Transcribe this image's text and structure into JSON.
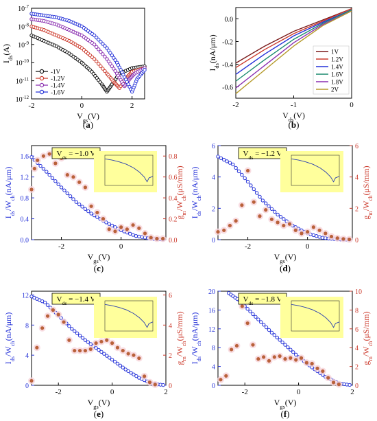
{
  "colors": {
    "blue": "#2431d8",
    "red": "#cc3a2c",
    "black": "#111111",
    "purple": "#8a2fb0",
    "olive": "#8a8a1a",
    "inset_bg": "#ffff9c"
  },
  "chart_data": [
    {
      "id": "a",
      "type": "line",
      "caption": "(a)",
      "xlabel_main": "V",
      "xlabel_sub": "gs",
      "xlabel_unit": "(V)",
      "ylabel_main": "I",
      "ylabel_sub": "ds",
      "ylabel_unit": "(A)",
      "xlim": [
        -2,
        2.5
      ],
      "ylim_log10": [
        -12,
        -7
      ],
      "yscale": "log",
      "xticks": [
        "-2",
        "0",
        "2"
      ],
      "xtick_values": [
        -2,
        0,
        2
      ],
      "ytick_exponents": [
        -7,
        -8,
        -9,
        -10,
        -11,
        -12
      ],
      "ytick_base": "10",
      "legend_position": "bottom-left",
      "series": [
        {
          "name": "-1V",
          "color": "#111111",
          "x": [
            -2,
            -1.5,
            -1,
            -0.5,
            0,
            0.4,
            0.8,
            1.0,
            1.2,
            1.5,
            2.0,
            2.5
          ],
          "y_log10": [
            -8.5,
            -8.8,
            -9.1,
            -9.5,
            -10.0,
            -10.5,
            -11.2,
            -11.6,
            -11.2,
            -10.6,
            -10.3,
            -10.2
          ]
        },
        {
          "name": "-1.2V",
          "color": "#cc3a2c",
          "x": [
            -2,
            -1.5,
            -1,
            -0.5,
            0,
            0.5,
            1.0,
            1.3,
            1.5,
            1.8,
            2.0,
            2.5
          ],
          "y_log10": [
            -8.0,
            -8.2,
            -8.5,
            -8.8,
            -9.2,
            -9.8,
            -10.6,
            -11.1,
            -11.4,
            -10.8,
            -10.5,
            -10.3
          ]
        },
        {
          "name": "-1.4V",
          "color": "#8a2fb0",
          "x": [
            -2,
            -1.5,
            -1,
            -0.5,
            0,
            0.5,
            1.0,
            1.4,
            1.7,
            1.9,
            2.1,
            2.5
          ],
          "y_log10": [
            -7.6,
            -7.7,
            -7.9,
            -8.2,
            -8.5,
            -9.0,
            -9.8,
            -10.6,
            -11.3,
            -10.9,
            -10.6,
            -10.3
          ]
        },
        {
          "name": "-1.6V",
          "color": "#2431d8",
          "x": [
            -2,
            -1.5,
            -1,
            -0.5,
            0,
            0.5,
            1.0,
            1.4,
            1.7,
            2.0,
            2.2,
            2.5
          ],
          "y_log10": [
            -7.3,
            -7.4,
            -7.5,
            -7.7,
            -8.0,
            -8.5,
            -9.2,
            -10.0,
            -10.8,
            -11.6,
            -10.9,
            -10.4
          ]
        }
      ]
    },
    {
      "id": "b",
      "type": "line",
      "caption": "(b)",
      "xlabel_main": "V",
      "xlabel_sub": "ds",
      "xlabel_unit": "(V)",
      "ylabel_main": "I",
      "ylabel_sub": "ds",
      "ylabel_unit": "(nA/μm)",
      "xlim": [
        -2,
        0
      ],
      "ylim": [
        -0.7,
        0.1
      ],
      "xticks": [
        "-2",
        "-1",
        "0"
      ],
      "xtick_values": [
        -2,
        -1,
        0
      ],
      "yticks": [
        "0.0",
        "-0.2",
        "-0.4",
        "-0.6"
      ],
      "ytick_values": [
        0,
        -0.2,
        -0.4,
        -0.6
      ],
      "legend_position": "bottom-right",
      "series": [
        {
          "name": "1V",
          "color": "#7a1a1a",
          "x": [
            -2,
            -1.5,
            -1,
            -0.5,
            0
          ],
          "y": [
            -0.39,
            -0.24,
            -0.11,
            -0.01,
            0.09
          ]
        },
        {
          "name": "1.2V",
          "color": "#cc3a2c",
          "x": [
            -2,
            -1.5,
            -1,
            -0.5,
            0
          ],
          "y": [
            -0.43,
            -0.27,
            -0.13,
            -0.02,
            0.09
          ]
        },
        {
          "name": "1.4V",
          "color": "#2431d8",
          "x": [
            -2,
            -1.5,
            -1,
            -0.5,
            0
          ],
          "y": [
            -0.49,
            -0.31,
            -0.15,
            -0.03,
            0.08
          ]
        },
        {
          "name": "1.6V",
          "color": "#1a8a6e",
          "x": [
            -2,
            -1.5,
            -1,
            -0.5,
            0
          ],
          "y": [
            -0.55,
            -0.36,
            -0.18,
            -0.04,
            0.08
          ]
        },
        {
          "name": "1.8V",
          "color": "#8a2fb0",
          "x": [
            -2,
            -1.5,
            -1,
            -0.5,
            0
          ],
          "y": [
            -0.61,
            -0.41,
            -0.21,
            -0.05,
            0.07
          ]
        },
        {
          "name": "2V",
          "color": "#b59a2a",
          "x": [
            -2,
            -1.5,
            -1,
            -0.5,
            0
          ],
          "y": [
            -0.66,
            -0.45,
            -0.24,
            -0.06,
            0.07
          ]
        }
      ]
    },
    {
      "id": "c",
      "type": "scatter",
      "caption": "(c)",
      "annotation": "V_ds = −1.0 V",
      "ann_main": "V",
      "ann_sub": "ds",
      "ann_rest": "= −1.0 V",
      "xlabel_main": "V",
      "xlabel_sub": "gs",
      "xlabel_unit": "(V)",
      "ylabel_left_parts": [
        "I",
        "ds",
        "/W",
        "ch",
        "(nA/μm)"
      ],
      "ylabel_right_parts": [
        "g",
        "m",
        "/W",
        "ch",
        "(μS/mm)"
      ],
      "xlim": [
        -3,
        1.5
      ],
      "ylim_left": [
        0,
        1.8
      ],
      "ylim_right": [
        0,
        0.9
      ],
      "xticks": [
        "-2",
        "0"
      ],
      "xtick_values": [
        -2,
        0
      ],
      "yticks_left": [
        "0.0",
        "0.4",
        "0.8",
        "1.2",
        "1.6"
      ],
      "ytick_left_values": [
        0,
        0.4,
        0.8,
        1.2,
        1.6
      ],
      "yticks_right": [
        "0.0",
        "0.2",
        "0.4",
        "0.6",
        "0.8"
      ],
      "ytick_right_values": [
        0,
        0.2,
        0.4,
        0.6,
        0.8
      ],
      "ids": {
        "x": [
          -3,
          -2.5,
          -2,
          -1.5,
          -1,
          -0.5,
          0,
          0.5,
          1.0,
          1.5
        ],
        "y": [
          1.58,
          1.3,
          1.0,
          0.72,
          0.5,
          0.33,
          0.18,
          0.07,
          0.02,
          0.0
        ]
      },
      "gm": {
        "x": [
          -3.0,
          -2.9,
          -2.8,
          -2.6,
          -2.4,
          -2.2,
          -2.0,
          -1.8,
          -1.6,
          -1.4,
          -1.2,
          -1.0,
          -0.8,
          -0.6,
          -0.4,
          -0.2,
          0.0,
          0.2,
          0.4,
          0.6,
          0.8,
          1.0,
          1.2,
          1.4
        ],
        "y": [
          0.48,
          0.68,
          0.76,
          0.8,
          0.82,
          0.73,
          0.78,
          0.62,
          0.6,
          0.55,
          0.5,
          0.32,
          0.26,
          0.2,
          0.1,
          0.08,
          0.12,
          0.1,
          0.14,
          0.11,
          0.06,
          0.02,
          0.01,
          0.01
        ]
      }
    },
    {
      "id": "d",
      "type": "scatter",
      "caption": "(d)",
      "annotation": "V_ds = −1.2 V",
      "ann_main": "V",
      "ann_sub": "ds",
      "ann_rest": "= −1.2 V",
      "xlabel_main": "V",
      "xlabel_sub": "gs",
      "xlabel_unit": "(V)",
      "ylabel_left_parts": [
        "I",
        "ds",
        "/W",
        "ch",
        "(nA/μm)"
      ],
      "ylabel_right_parts": [
        "g",
        "m",
        "/W",
        "ch",
        "(μS/mm)"
      ],
      "xlim": [
        -3,
        1.5
      ],
      "ylim_left": [
        0,
        6
      ],
      "ylim_right": [
        0,
        6
      ],
      "xticks": [
        "-2",
        "0"
      ],
      "xtick_values": [
        -2,
        0
      ],
      "yticks_left": [
        "0",
        "2",
        "4",
        "6"
      ],
      "ytick_left_values": [
        0,
        2,
        4,
        6
      ],
      "yticks_right": [
        "0",
        "2",
        "4",
        "6"
      ],
      "ytick_right_values": [
        0,
        2,
        4,
        6
      ],
      "ids": {
        "x": [
          -3,
          -2.5,
          -2,
          -1.5,
          -1,
          -0.5,
          0,
          0.5,
          1.0,
          1.5
        ],
        "y": [
          5.3,
          4.8,
          3.7,
          2.5,
          1.6,
          0.9,
          0.4,
          0.12,
          0.02,
          0.0
        ]
      },
      "gm": {
        "x": [
          -3.0,
          -2.8,
          -2.6,
          -2.4,
          -2.2,
          -2.0,
          -1.8,
          -1.6,
          -1.4,
          -1.2,
          -1.0,
          -0.8,
          -0.6,
          -0.4,
          -0.2,
          0.0,
          0.2,
          0.4,
          0.6,
          0.8,
          1.0,
          1.2,
          1.4
        ],
        "y": [
          0.5,
          0.6,
          0.9,
          1.2,
          2.2,
          4.4,
          2.4,
          1.5,
          1.9,
          1.3,
          1.1,
          0.9,
          1.0,
          0.6,
          0.4,
          0.5,
          0.8,
          0.6,
          0.4,
          0.2,
          0.1,
          0.05,
          0.02
        ]
      }
    },
    {
      "id": "e",
      "type": "scatter",
      "caption": "(e)",
      "annotation": "V_ds = −1.4 V",
      "ann_main": "V",
      "ann_sub": "ds",
      "ann_rest": "= −1.4 V",
      "xlabel_main": "V",
      "xlabel_sub": "gs",
      "xlabel_unit": "(V)",
      "ylabel_left_parts": [
        "I",
        "ds",
        "/W",
        "ch",
        "(nA/μm)"
      ],
      "ylabel_right_parts": [
        "g",
        "m",
        "/W",
        "ch",
        "(μS/mm)"
      ],
      "xlim": [
        -3,
        2
      ],
      "ylim_left": [
        0,
        12.5
      ],
      "ylim_right": [
        0,
        6.25
      ],
      "xticks": [
        "-2",
        "0",
        "2"
      ],
      "xtick_values": [
        -2,
        0,
        2
      ],
      "yticks_left": [
        "0",
        "4",
        "8",
        "12"
      ],
      "ytick_left_values": [
        0,
        4,
        8,
        12
      ],
      "yticks_right": [
        "0",
        "2",
        "4",
        "6"
      ],
      "ytick_right_values": [
        0,
        2,
        4,
        6
      ],
      "ids": {
        "x": [
          -3,
          -2.5,
          -2,
          -1.5,
          -1,
          -0.5,
          0,
          0.5,
          1.0,
          1.5,
          2.0
        ],
        "y": [
          11.8,
          11.0,
          9.3,
          7.5,
          6.0,
          4.7,
          3.4,
          2.1,
          1.0,
          0.2,
          0.0
        ]
      },
      "gm": {
        "x": [
          -3.0,
          -2.8,
          -2.6,
          -2.4,
          -2.2,
          -2.0,
          -1.8,
          -1.6,
          -1.4,
          -1.2,
          -1.0,
          -0.8,
          -0.6,
          -0.4,
          -0.2,
          0.0,
          0.2,
          0.4,
          0.6,
          0.8,
          1.0,
          1.2,
          1.4,
          1.6
        ],
        "y": [
          0.3,
          2.5,
          3.8,
          4.6,
          5.0,
          4.7,
          4.2,
          3.0,
          2.3,
          2.3,
          2.3,
          2.4,
          2.8,
          2.9,
          3.0,
          2.8,
          2.5,
          2.3,
          2.1,
          2.0,
          1.8,
          0.6,
          0.2,
          0.05
        ]
      }
    },
    {
      "id": "f",
      "type": "scatter",
      "caption": "(f)",
      "annotation": "V_ds = −1.8 V",
      "ann_main": "V",
      "ann_sub": "ds",
      "ann_rest": "= −1.8 V",
      "xlabel_main": "V",
      "xlabel_sub": "gs",
      "xlabel_unit": "(V)",
      "ylabel_left_parts": [
        "I",
        "ds",
        "/W",
        "ch",
        "(nA/μm)"
      ],
      "ylabel_right_parts": [
        "g",
        "m",
        "/W",
        "ch",
        "(μS/mm)"
      ],
      "xlim": [
        -3,
        2
      ],
      "ylim_left": [
        0,
        20
      ],
      "ylim_right": [
        0,
        10
      ],
      "xticks": [
        "-2",
        "0",
        "2"
      ],
      "xtick_values": [
        -2,
        0,
        2
      ],
      "yticks_left": [
        "0",
        "4",
        "8",
        "12",
        "16",
        "20"
      ],
      "ytick_left_values": [
        0,
        4,
        8,
        12,
        16,
        20
      ],
      "yticks_right": [
        "0",
        "2",
        "4",
        "6",
        "8",
        "10"
      ],
      "ytick_right_values": [
        0,
        2,
        4,
        6,
        8,
        10
      ],
      "ids": {
        "x": [
          -2.6,
          -2.2,
          -2.0,
          -1.5,
          -1,
          -0.5,
          0,
          0.5,
          1.0,
          1.5,
          2.0
        ],
        "y": [
          19.6,
          18.0,
          16.8,
          14.0,
          11.2,
          8.6,
          6.0,
          3.8,
          1.8,
          0.4,
          0.0
        ]
      },
      "gm": {
        "x": [
          -2.9,
          -2.7,
          -2.5,
          -2.3,
          -2.1,
          -1.9,
          -1.7,
          -1.5,
          -1.3,
          -1.1,
          -0.9,
          -0.7,
          -0.5,
          -0.3,
          -0.1,
          0.1,
          0.3,
          0.5,
          0.7,
          0.9,
          1.1,
          1.3,
          1.5
        ],
        "y": [
          0.6,
          1.0,
          3.8,
          4.2,
          8.4,
          6.6,
          4.3,
          2.8,
          3.0,
          2.6,
          3.0,
          3.1,
          2.8,
          2.9,
          2.7,
          2.9,
          2.4,
          2.3,
          1.8,
          1.5,
          0.8,
          0.3,
          0.1
        ]
      }
    }
  ]
}
